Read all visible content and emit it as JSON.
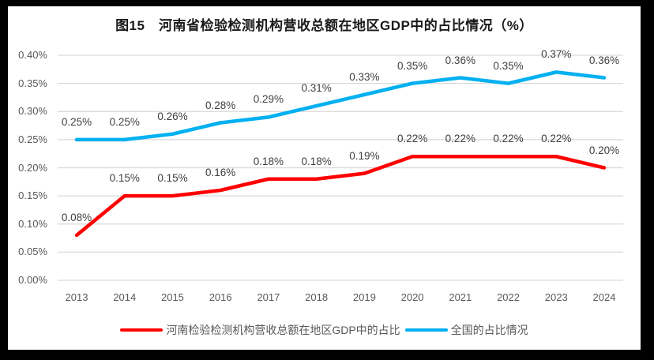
{
  "chart_data": {
    "type": "line",
    "title": "图15　河南省检验检测机构营收总额在地区GDP中的占比情况（%）",
    "categories": [
      "2013",
      "2014",
      "2015",
      "2016",
      "2017",
      "2018",
      "2019",
      "2020",
      "2021",
      "2022",
      "2023",
      "2024"
    ],
    "series": [
      {
        "id": "henan",
        "name": "河南检验检测机构营收总额在地区GDP中的占比",
        "color": "#FF0000",
        "values": [
          0.08,
          0.15,
          0.15,
          0.16,
          0.18,
          0.18,
          0.19,
          0.22,
          0.22,
          0.22,
          0.22,
          0.2
        ],
        "labels": [
          "0.08%",
          "0.15%",
          "0.15%",
          "0.16%",
          "0.18%",
          "0.18%",
          "0.19%",
          "0.22%",
          "0.22%",
          "0.22%",
          "0.22%",
          "0.20%"
        ]
      },
      {
        "id": "national",
        "name": "全国的占比情况",
        "color": "#00B0F0",
        "values": [
          0.25,
          0.25,
          0.26,
          0.28,
          0.29,
          0.31,
          0.33,
          0.35,
          0.36,
          0.35,
          0.37,
          0.36
        ],
        "labels": [
          "0.25%",
          "0.25%",
          "0.26%",
          "0.28%",
          "0.29%",
          "0.31%",
          "0.33%",
          "0.35%",
          "0.36%",
          "0.35%",
          "0.37%",
          "0.36%"
        ]
      }
    ],
    "xlabel": "",
    "ylabel": "",
    "ylim": [
      0,
      0.4
    ],
    "ytick_step": 0.05,
    "ytick_labels": [
      "0.00%",
      "0.05%",
      "0.10%",
      "0.15%",
      "0.20%",
      "0.25%",
      "0.30%",
      "0.35%",
      "0.40%"
    ],
    "grid": true,
    "data_labels": true,
    "legend_position": "bottom"
  },
  "colors": {
    "grid_line": "#D9D9D9",
    "tick_text": "#595959",
    "data_label_text": "#404040",
    "title_text": "#1A1A1A",
    "frame": "#000000",
    "background": "#FFFFFF"
  }
}
